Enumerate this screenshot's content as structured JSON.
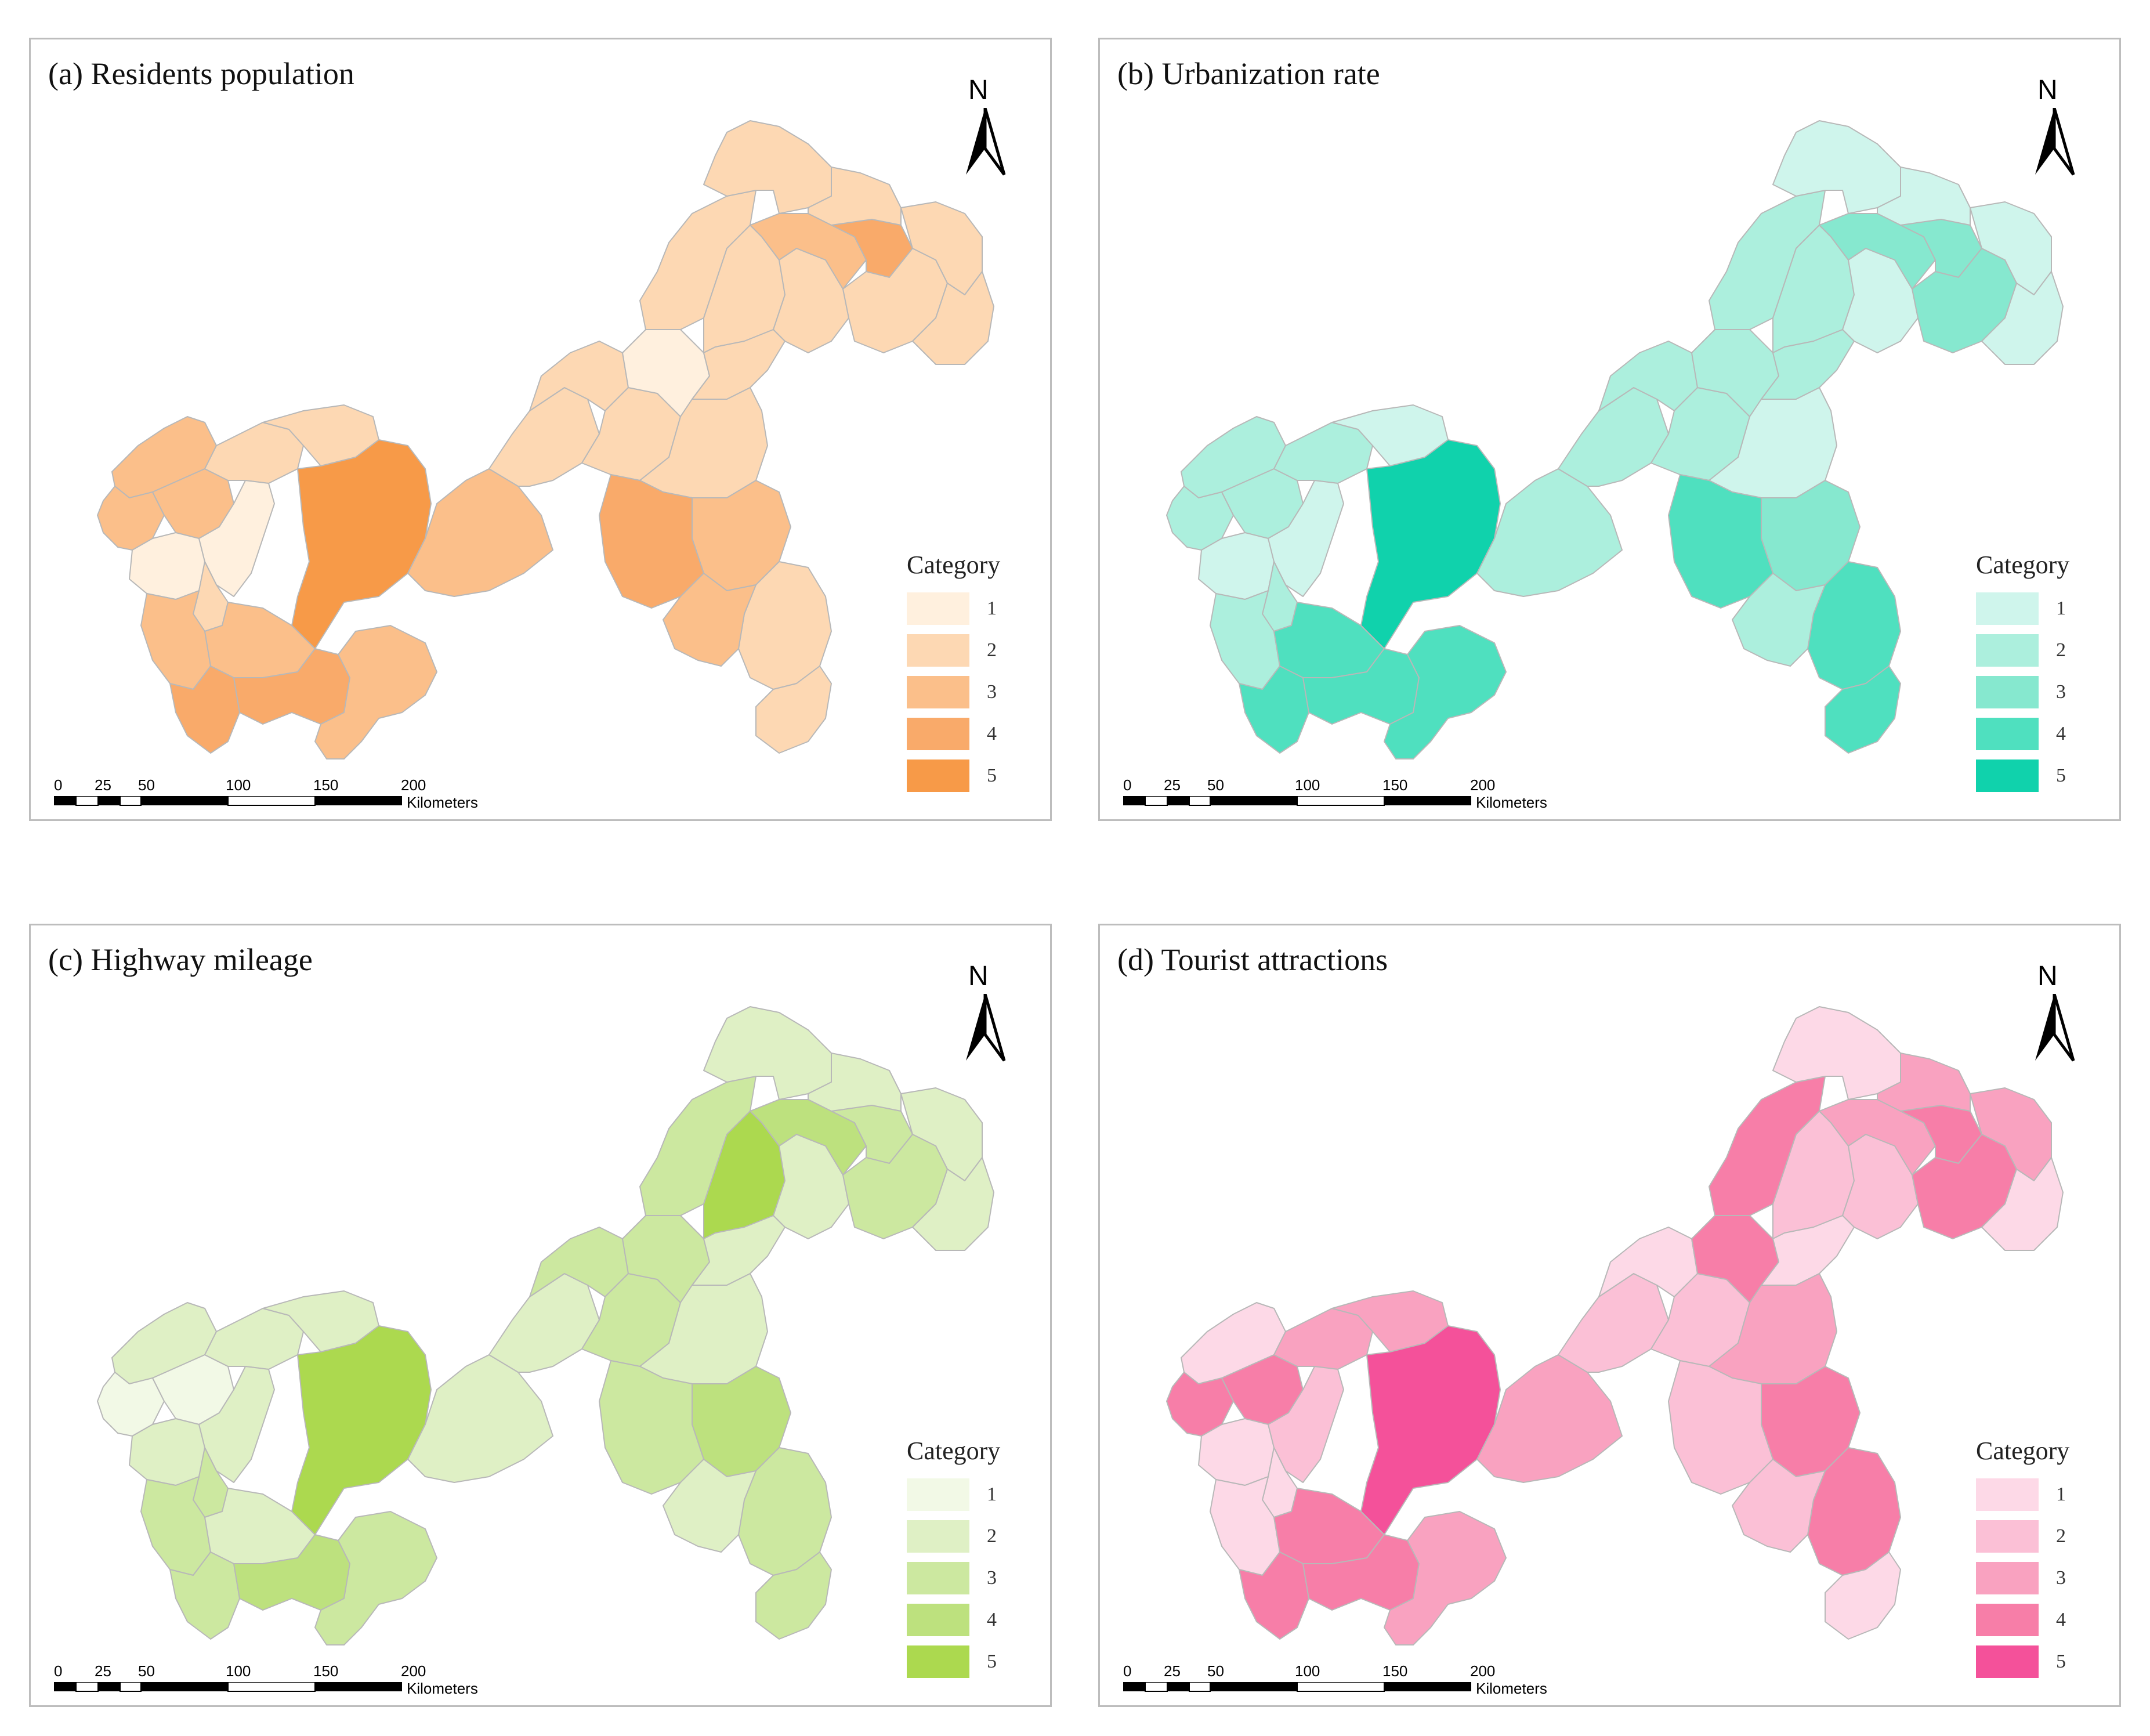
{
  "panels": [
    {
      "title": "(a) Residents population",
      "palette": [
        "#fff0de",
        "#fdd8b3",
        "#fbbf8a",
        "#f9aa6a",
        "#f79a48"
      ],
      "regions": [
        3,
        3,
        3,
        2,
        2,
        1,
        1,
        2,
        3,
        3,
        4,
        4,
        5,
        3,
        3,
        2,
        2,
        2,
        1,
        2,
        2,
        2,
        3,
        4,
        2,
        2,
        2,
        2,
        2,
        2,
        2,
        3,
        4,
        2,
        2,
        3
      ]
    },
    {
      "title": "(b) Urbanization rate",
      "palette": [
        "#cff5ec",
        "#acefdd",
        "#86e8cf",
        "#4fe0bf",
        "#10d2ac"
      ],
      "regions": [
        2,
        2,
        2,
        2,
        1,
        1,
        1,
        2,
        2,
        4,
        4,
        4,
        5,
        4,
        2,
        2,
        2,
        2,
        2,
        2,
        2,
        1,
        3,
        3,
        3,
        2,
        1,
        1,
        1,
        1,
        1,
        3,
        4,
        4,
        4,
        2
      ]
    },
    {
      "title": "(c) Highway mileage",
      "palette": [
        "#f2f9e6",
        "#dff0c5",
        "#cce8a0",
        "#bde17e",
        "#acd94f"
      ],
      "regions": [
        2,
        1,
        1,
        2,
        2,
        2,
        2,
        3,
        3,
        2,
        3,
        4,
        5,
        3,
        2,
        2,
        3,
        3,
        3,
        3,
        5,
        2,
        4,
        3,
        3,
        2,
        2,
        2,
        2,
        2,
        2,
        4,
        3,
        3,
        3,
        2
      ]
    },
    {
      "title": "(d) Tourist attractions",
      "palette": [
        "#fdd9e7",
        "#fbc0d6",
        "#f9a2c0",
        "#f77ea8",
        "#f4519a"
      ],
      "regions": [
        1,
        4,
        4,
        3,
        3,
        1,
        2,
        1,
        1,
        4,
        4,
        4,
        5,
        3,
        3,
        2,
        1,
        2,
        4,
        4,
        2,
        2,
        3,
        4,
        4,
        1,
        1,
        3,
        3,
        1,
        3,
        4,
        2,
        4,
        1,
        2
      ]
    }
  ],
  "legend": {
    "title": "Category",
    "labels": [
      "1",
      "2",
      "3",
      "4",
      "5"
    ]
  },
  "north_arrow": {
    "label": "N"
  },
  "scalebar": {
    "ticks": [
      "0",
      "25",
      "50",
      "100",
      "150",
      "200"
    ],
    "unit": "Kilometers"
  }
}
